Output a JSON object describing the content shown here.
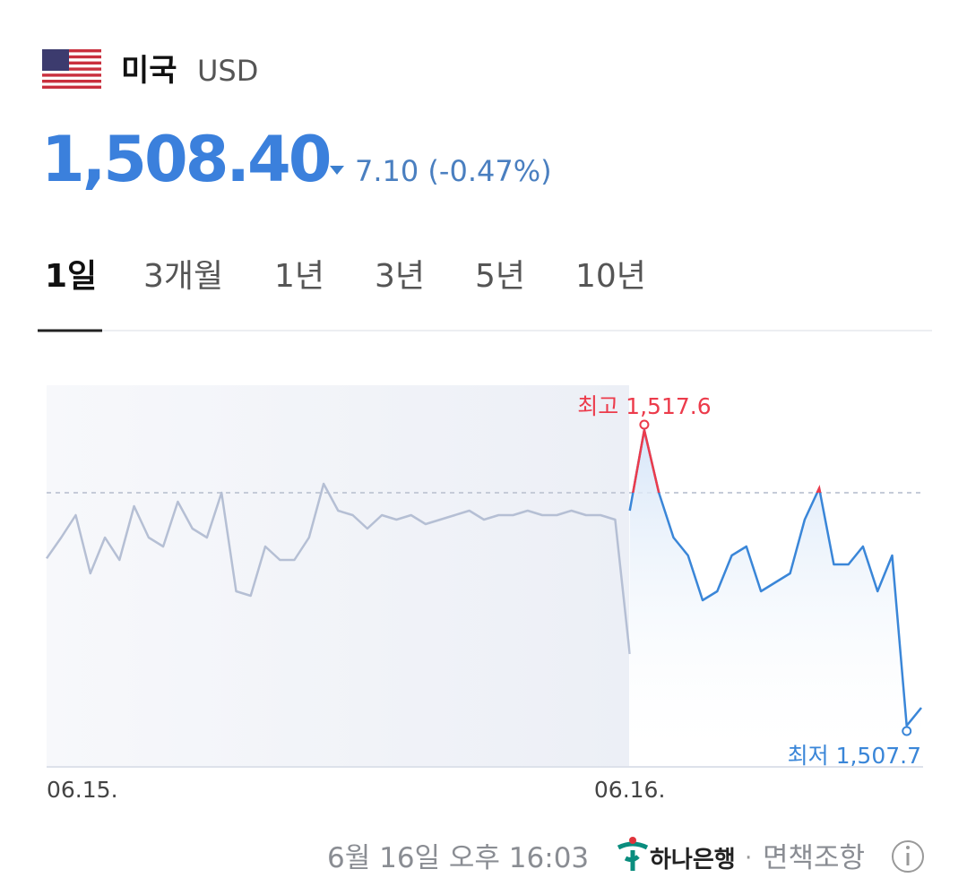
{
  "header": {
    "country": "미국",
    "currency": "USD",
    "price": "1,508.40",
    "change": "7.10",
    "change_percent": "(-0.47%)"
  },
  "tabs": [
    "1일",
    "3개월",
    "1년",
    "3년",
    "5년",
    "10년"
  ],
  "chart_data": {
    "type": "line",
    "categories": [
      "06.15.",
      null,
      null,
      null,
      null,
      null,
      null,
      null,
      null,
      null,
      null,
      null,
      null,
      null,
      null,
      null,
      null,
      null,
      null,
      null,
      null,
      null,
      null,
      null,
      null,
      null,
      null,
      null,
      null,
      null,
      null,
      null,
      null,
      null,
      null,
      null,
      null,
      null,
      null,
      null,
      "06.16.",
      null,
      null,
      null,
      null,
      null,
      null,
      null,
      null,
      null,
      null,
      null,
      null,
      null,
      null,
      null,
      null,
      null,
      null,
      null,
      null
    ],
    "series": [
      {
        "color": "#b5bfd4",
        "values": [
          1513.3,
          1514.0,
          1514.75,
          1512.8,
          1514.0,
          1513.25,
          1515.05,
          1514.0,
          1513.7,
          1515.2,
          1514.3,
          1514.0,
          1515.5,
          1512.2,
          1512.05,
          1513.7,
          1513.25,
          1513.25,
          1514.0,
          1515.8,
          1514.9,
          1514.75,
          1514.3,
          1514.75,
          1514.6,
          1514.75,
          1514.45,
          1514.6,
          1514.75,
          1514.9,
          1514.6,
          1514.75,
          1514.75,
          1514.9,
          1514.75,
          1514.75,
          1514.9,
          1514.75,
          1514.75,
          1514.6,
          1510.1,
          null,
          null,
          null,
          null,
          null,
          null,
          null,
          null,
          null,
          null,
          null,
          null,
          null,
          null,
          null,
          null,
          null,
          null,
          null,
          null
        ]
      },
      {
        "color": "#3a86d8",
        "values": [
          null,
          null,
          null,
          null,
          null,
          null,
          null,
          null,
          null,
          null,
          null,
          null,
          null,
          null,
          null,
          null,
          null,
          null,
          null,
          null,
          null,
          null,
          null,
          null,
          null,
          null,
          null,
          null,
          null,
          null,
          null,
          null,
          null,
          null,
          null,
          null,
          null,
          null,
          null,
          null,
          1514.9,
          1517.6,
          1515.5,
          1514.0,
          1513.4,
          1511.9,
          1512.2,
          1513.4,
          1513.7,
          1512.2,
          1512.5,
          1512.8,
          1514.6,
          1515.65,
          1513.1,
          1513.1,
          1513.7,
          1512.2,
          1513.4,
          1507.7,
          1508.3
        ]
      }
    ],
    "reference": 1515.5,
    "above_color": "#ec3b4b",
    "ylim": [
      1506.35,
      1519.1
    ],
    "high_label": "최고 1,517.6",
    "low_label": "최저 1,507.7"
  },
  "footer": {
    "timestamp": "6월 16일 오후 16:03",
    "bank": "하나은행",
    "separator": "·",
    "disclaimer": "면책조항"
  }
}
